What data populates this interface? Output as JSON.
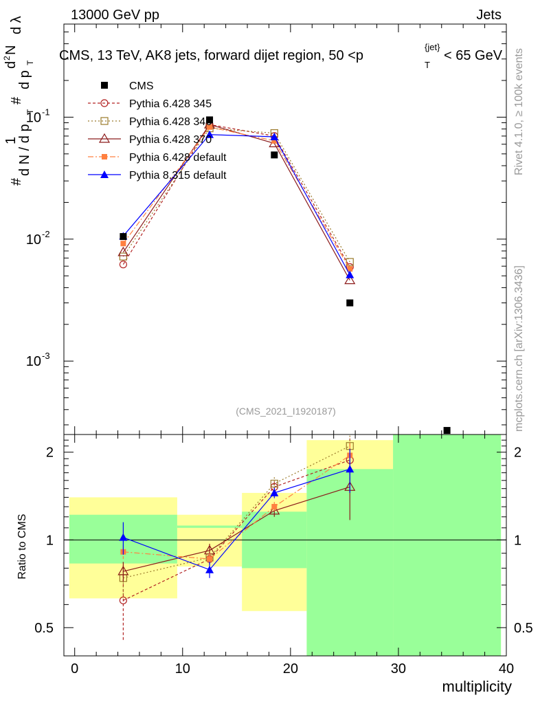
{
  "header": {
    "left": "13000 GeV pp",
    "right": "Jets"
  },
  "title": "CMS, 13 TeV, AK8 jets, forward dijet region, 50 <p",
  "title_sub": "T",
  "title_sup": "{jet}",
  "title_end": "< 65 GeV",
  "ylabel": "1/N dN/dλ",
  "ylabel_parts": {
    "num1": "1",
    "hash1": "#",
    "den1": "d N / d p",
    "t1": "T",
    "hash2": "#",
    "num2": "d",
    "sup2": "2",
    "num2b": "N",
    "den2": "d p",
    "t2": "T",
    "lambda": "d λ"
  },
  "side_text_top": "Rivet 4.1.0, ≥ 100k events",
  "side_text_bottom": "mcplots.cern.ch [arXiv:1306.3436]",
  "watermark": "(CMS_2021_I1920187)",
  "ratio_ylabel": "Ratio to CMS",
  "xlabel": "multiplicity",
  "chart_data": {
    "type": "line",
    "xlim": [
      -1,
      40
    ],
    "main": {
      "yscale": "log",
      "ylim": [
        0.00025,
        0.58
      ],
      "ytick_labels": [
        "10^-3",
        "10^-2",
        "10^-1"
      ],
      "ytick_values": [
        0.001,
        0.01,
        0.1
      ]
    },
    "ratio": {
      "ylim": [
        0.4,
        2.3
      ],
      "yscale": "log",
      "ytick_labels": [
        "0.5",
        "1",
        "2"
      ],
      "ytick_values": [
        0.5,
        1,
        2
      ]
    },
    "xtick_labels": [
      "0",
      "10",
      "20",
      "30",
      "40"
    ],
    "xtick_values": [
      0,
      10,
      20,
      30,
      40
    ],
    "bin_edges": [
      -0.5,
      9.5,
      15.5,
      21.5,
      29.5,
      39.5
    ],
    "x": [
      4.5,
      12.5,
      18.5,
      25.5
    ],
    "cms": {
      "name": "CMS",
      "values": [
        0.0105,
        0.095,
        0.049,
        0.003
      ],
      "extra_point": {
        "x": 34.5,
        "y": 0.00027
      }
    },
    "bands": {
      "green_lo": [
        0.83,
        1.1,
        0.8,
        0.3,
        0.3
      ],
      "green_hi": [
        1.22,
        1.12,
        1.25,
        1.75,
        2.3
      ],
      "yellow_lo": [
        0.63,
        0.81,
        0.57,
        0.3,
        0.3
      ],
      "yellow_hi": [
        1.4,
        1.22,
        1.45,
        2.2,
        2.3
      ]
    },
    "series": [
      {
        "name": "Pythia 6.428 345",
        "color": "#b22222",
        "dash": "4,3",
        "marker": "open-circle",
        "values": [
          0.0062,
          0.087,
          0.07,
          0.0059
        ],
        "ratio": [
          0.62,
          0.86,
          1.52,
          1.88
        ],
        "ratio_err": [
          0.17,
          0.05,
          0.06,
          0.35
        ]
      },
      {
        "name": "Pythia 6.428 346",
        "color": "#9a7a2a",
        "dash": "2,3",
        "marker": "open-square",
        "values": [
          0.0072,
          0.081,
          0.074,
          0.0065
        ],
        "ratio": [
          0.74,
          0.87,
          1.56,
          2.1
        ],
        "ratio_err": [
          0.1,
          0.06,
          0.08,
          0.18
        ]
      },
      {
        "name": "Pythia 6.428 370",
        "color": "#8b1a1a",
        "dash": "",
        "marker": "open-triangle",
        "values": [
          0.0078,
          0.087,
          0.061,
          0.0046
        ],
        "ratio": [
          0.78,
          0.92,
          1.26,
          1.52
        ],
        "ratio_err": [
          0.06,
          0.05,
          0.06,
          0.35
        ]
      },
      {
        "name": "Pythia 6.428 default",
        "color": "#ff8040",
        "dash": "8,3,2,3",
        "marker": "filled-square",
        "values": [
          0.0092,
          0.083,
          0.064,
          0.0057
        ],
        "ratio": [
          0.91,
          0.86,
          1.3,
          1.95
        ],
        "ratio_err": [
          0.05,
          0.04,
          0.05,
          0.2
        ]
      },
      {
        "name": "Pythia 8.315 default",
        "color": "#0000ff",
        "dash": "",
        "marker": "filled-triangle",
        "values": [
          0.0106,
          0.072,
          0.069,
          0.0051
        ],
        "ratio": [
          1.02,
          0.79,
          1.45,
          1.75
        ],
        "ratio_err": [
          0.13,
          0.05,
          0.06,
          0.3
        ]
      }
    ]
  }
}
